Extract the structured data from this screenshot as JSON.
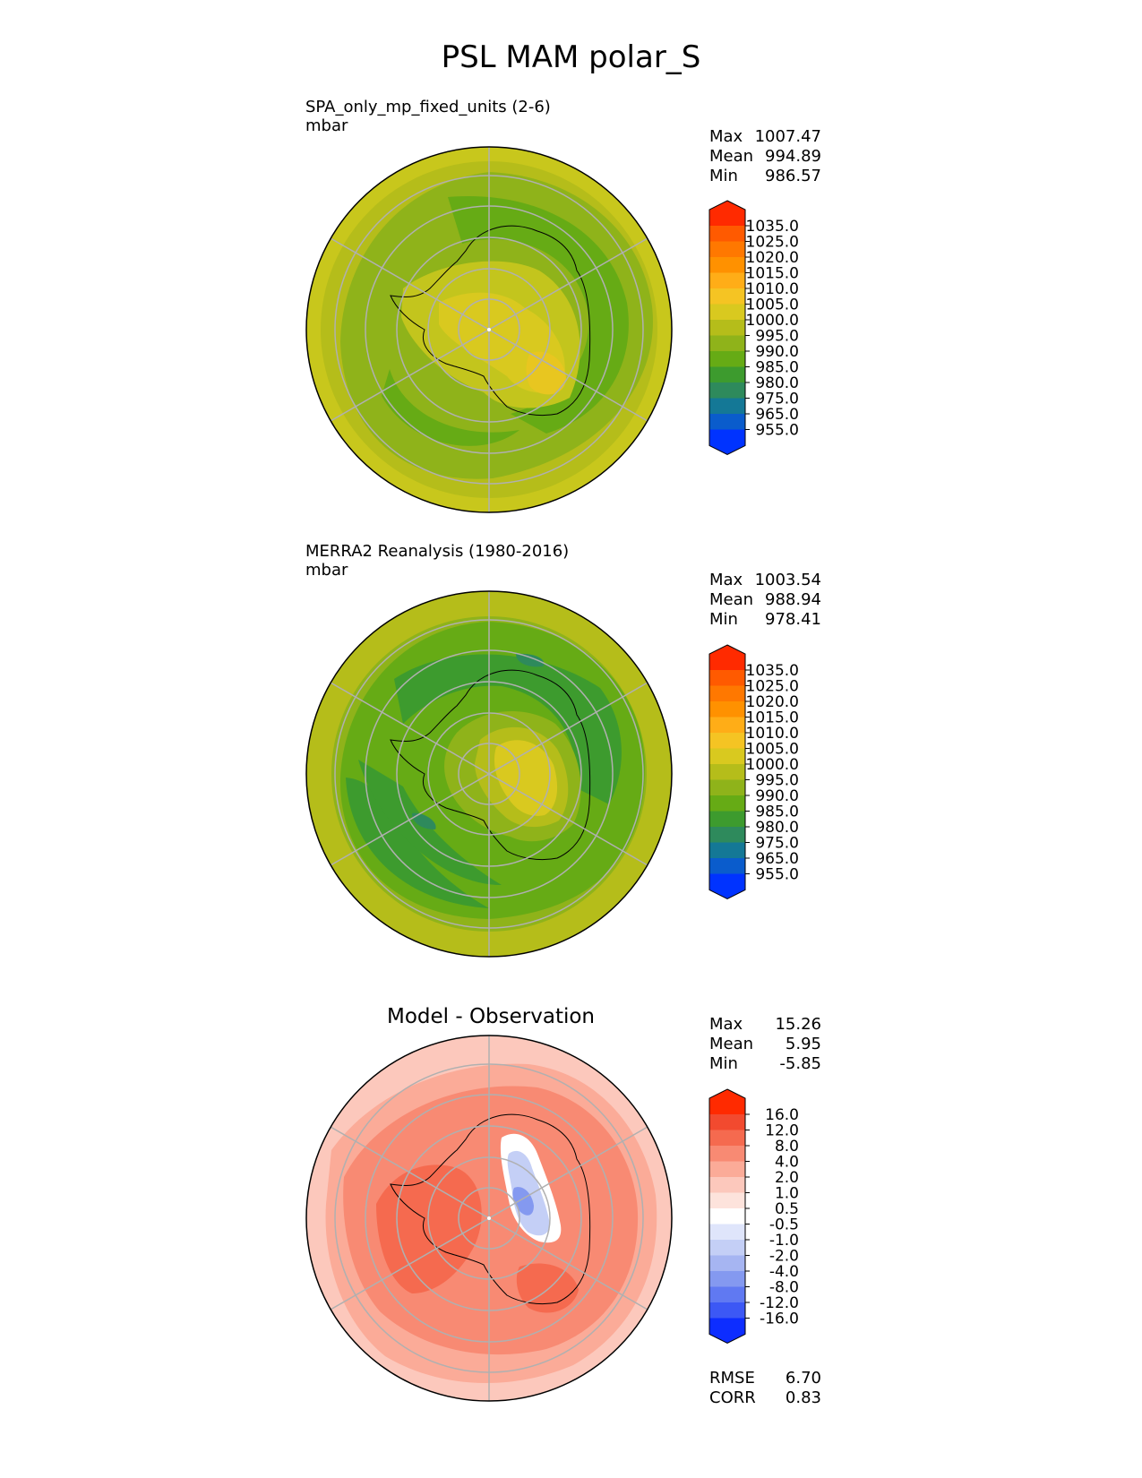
{
  "figure": {
    "title": "PSL MAM polar_S"
  },
  "panels": [
    {
      "label": "SPA_only_mp_fixed_units (2-6)",
      "units": "mbar",
      "heading": "",
      "stats": [
        {
          "name": "Max",
          "value": "1007.47"
        },
        {
          "name": "Mean",
          "value": "994.89"
        },
        {
          "name": "Min",
          "value": "986.57"
        }
      ],
      "colorbar": {
        "ticks": [
          "1035.0",
          "1025.0",
          "1020.0",
          "1015.0",
          "1010.0",
          "1005.0",
          "1000.0",
          "995.0",
          "990.0",
          "985.0",
          "980.0",
          "975.0",
          "965.0",
          "955.0"
        ],
        "colors": [
          "#ff2a00",
          "#ff5a00",
          "#ff7800",
          "#ff9100",
          "#ffad17",
          "#f5c423",
          "#d9c91f",
          "#b5bd1a",
          "#8fb31a",
          "#66ab15",
          "#3d9b2e",
          "#2e8a5c",
          "#147896",
          "#0a5ccc",
          "#0033ff"
        ]
      },
      "stats_extra": []
    },
    {
      "label": "MERRA2 Reanalysis (1980-2016)",
      "units": "mbar",
      "heading": "",
      "stats": [
        {
          "name": "Max",
          "value": "1003.54"
        },
        {
          "name": "Mean",
          "value": "988.94"
        },
        {
          "name": "Min",
          "value": "978.41"
        }
      ],
      "colorbar": {
        "ticks": [
          "1035.0",
          "1025.0",
          "1020.0",
          "1015.0",
          "1010.0",
          "1005.0",
          "1000.0",
          "995.0",
          "990.0",
          "985.0",
          "980.0",
          "975.0",
          "965.0",
          "955.0"
        ],
        "colors": [
          "#ff2a00",
          "#ff5a00",
          "#ff7800",
          "#ff9100",
          "#ffad17",
          "#f5c423",
          "#d9c91f",
          "#b5bd1a",
          "#8fb31a",
          "#66ab15",
          "#3d9b2e",
          "#2e8a5c",
          "#147896",
          "#0a5ccc",
          "#0033ff"
        ]
      },
      "stats_extra": []
    },
    {
      "label": "",
      "units": "",
      "heading": "Model - Observation",
      "stats": [
        {
          "name": "Max",
          "value": "15.26"
        },
        {
          "name": "Mean",
          "value": "5.95"
        },
        {
          "name": "Min",
          "value": "-5.85"
        }
      ],
      "colorbar": {
        "ticks": [
          "16.0",
          "12.0",
          "8.0",
          "4.0",
          "2.0",
          "1.0",
          "0.5",
          "-0.5",
          "-1.0",
          "-2.0",
          "-4.0",
          "-8.0",
          "-12.0",
          "-16.0"
        ],
        "colors": [
          "#ff2a00",
          "#f24a2f",
          "#f56a4f",
          "#f88a73",
          "#fbab98",
          "#fcc8bc",
          "#fde3dc",
          "#ffffff",
          "#dfe5fb",
          "#c4cff6",
          "#a6b5f2",
          "#8499f0",
          "#6079f2",
          "#3c58f5",
          "#0d2dff"
        ]
      },
      "stats_extra": [
        {
          "name": "RMSE",
          "value": "6.70"
        },
        {
          "name": "CORR",
          "value": "0.83"
        }
      ]
    }
  ],
  "chart_data": [
    {
      "type": "heatmap",
      "projection": "south polar stereographic",
      "title": "SPA_only_mp_fixed_units (2-6)",
      "units": "mbar",
      "levels": [
        955,
        965,
        975,
        980,
        985,
        990,
        995,
        1000,
        1005,
        1010,
        1015,
        1020,
        1025,
        1035
      ],
      "max": 1007.47,
      "mean": 994.89,
      "min": 986.57
    },
    {
      "type": "heatmap",
      "projection": "south polar stereographic",
      "title": "MERRA2 Reanalysis (1980-2016)",
      "units": "mbar",
      "levels": [
        955,
        965,
        975,
        980,
        985,
        990,
        995,
        1000,
        1005,
        1010,
        1015,
        1020,
        1025,
        1035
      ],
      "max": 1003.54,
      "mean": 988.94,
      "min": 978.41
    },
    {
      "type": "heatmap",
      "projection": "south polar stereographic",
      "title": "Model - Observation",
      "levels": [
        -16,
        -12,
        -8,
        -4,
        -2,
        -1,
        -0.5,
        0.5,
        1,
        2,
        4,
        8,
        12,
        16
      ],
      "max": 15.26,
      "mean": 5.95,
      "min": -5.85,
      "rmse": 6.7,
      "corr": 0.83
    }
  ]
}
